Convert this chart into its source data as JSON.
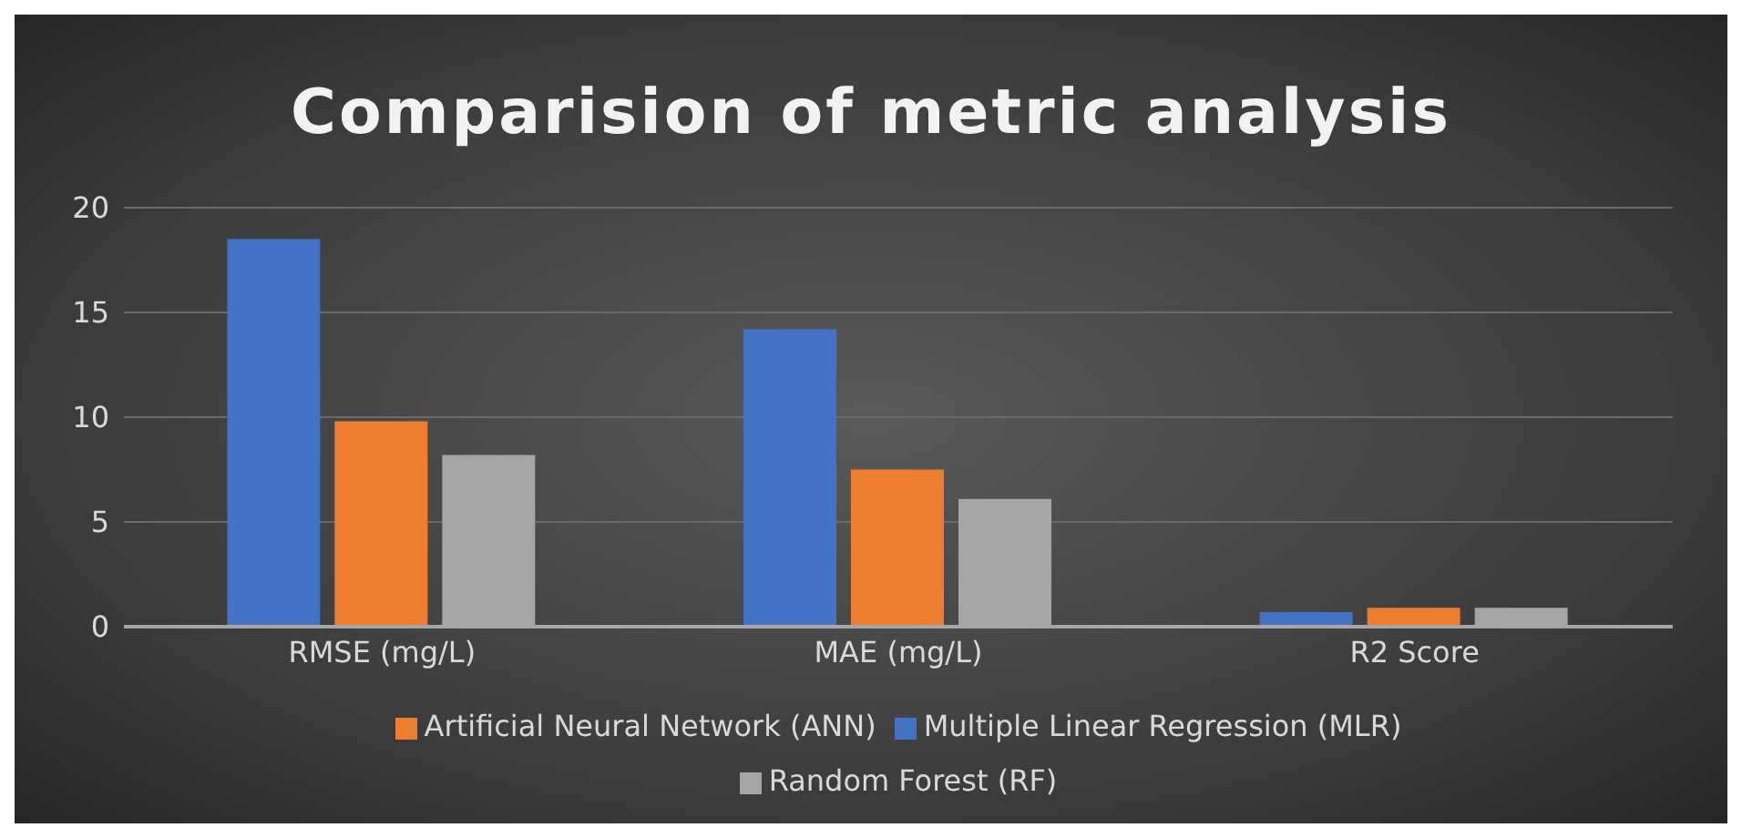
{
  "chart_data": {
    "type": "bar",
    "title": "Comparision of metric analysis",
    "categories": [
      "RMSE (mg/L)",
      "MAE (mg/L)",
      "R2 Score"
    ],
    "series": [
      {
        "name": "Multiple Linear Regression (MLR)",
        "color": "#4472c4",
        "values": [
          18.5,
          14.2,
          0.7
        ]
      },
      {
        "name": "Artificial Neural Network (ANN)",
        "color": "#ed7d31",
        "values": [
          9.8,
          7.5,
          0.9
        ]
      },
      {
        "name": "Random Forest (RF)",
        "color": "#a5a5a5",
        "values": [
          8.2,
          6.1,
          0.9
        ]
      }
    ],
    "ylim": [
      0,
      20
    ],
    "yticks": [
      0,
      5,
      10,
      15,
      20
    ],
    "grid": "y",
    "legend": "bottom"
  }
}
